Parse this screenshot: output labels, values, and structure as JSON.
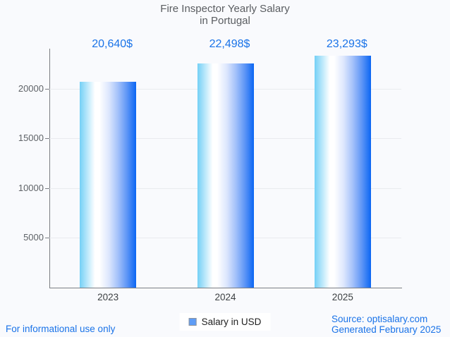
{
  "chart_data": {
    "type": "bar",
    "title": "Fire Inspector Yearly Salary\nin Portugal",
    "categories": [
      "2023",
      "2024",
      "2025"
    ],
    "values": [
      20640,
      22498,
      23293
    ],
    "value_labels": [
      "20,640$",
      "22,498$",
      "23,293$"
    ],
    "series_name": "Salary in USD",
    "xlabel": "",
    "ylabel": "",
    "ylim": [
      0,
      24000
    ],
    "yticks": [
      5000,
      10000,
      15000,
      20000
    ],
    "grid": true,
    "legend_position": "bottom-center"
  },
  "footer": {
    "disclaimer": "For informational use only",
    "source_line1": "Source: optisalary.com",
    "source_line2": "Generated February 2025"
  },
  "colors": {
    "background": "#f9fafd",
    "title_text": "#5a5d61",
    "axis_text": "#5f6368",
    "category_text": "#3c4043",
    "value_label_text": "#1a73e8",
    "footer_text": "#1a73e8",
    "axis_line": "#7b7e83",
    "gridline": "#e9ebef",
    "legend_box_bg": "#ffffff",
    "legend_marker_fill": "#5f9df6",
    "legend_marker_border": "#8f949b",
    "bar_gradient_stops": [
      "#74d0f6 0%",
      "#ffffff 27%",
      "#ffffff 35%",
      "#dce6fd 52%",
      "#a3c1fa 68%",
      "#5d95f6 84%",
      "#0b66f3 100%"
    ]
  }
}
